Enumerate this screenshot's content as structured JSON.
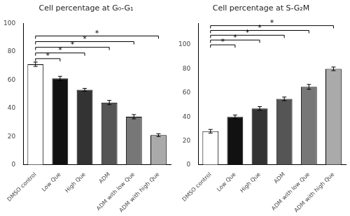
{
  "chart_data": [
    {
      "type": "bar",
      "title": "Cell percentage at G₀-G₁",
      "categories": [
        "DMSO control",
        "Low Que",
        "High Que",
        "ADM",
        "ADM with low Que",
        "ADM with high Que"
      ],
      "values": [
        71,
        61,
        53,
        44,
        34,
        21
      ],
      "errors": [
        1.5,
        1.5,
        1.0,
        1.5,
        1.5,
        1.0
      ],
      "colors": [
        "#ffffff",
        "#111111",
        "#333333",
        "#555555",
        "#777777",
        "#aaaaaa"
      ],
      "ylim": [
        0,
        100
      ],
      "yticks": [
        0,
        20,
        40,
        60,
        80,
        100
      ],
      "grid": false,
      "brackets": [
        {
          "between": [
            "DMSO control",
            "Low Que"
          ],
          "height": 75,
          "label": "*"
        },
        {
          "between": [
            "DMSO control",
            "High Que"
          ],
          "height": 79,
          "label": "*"
        },
        {
          "between": [
            "DMSO control",
            "ADM"
          ],
          "height": 83,
          "label": "*"
        },
        {
          "between": [
            "DMSO control",
            "ADM with low Que"
          ],
          "height": 87,
          "label": "*"
        },
        {
          "between": [
            "DMSO control",
            "ADM with high Que"
          ],
          "height": 91,
          "label": "*"
        }
      ]
    },
    {
      "type": "bar",
      "title": "Cell percentage at S-G₂M",
      "categories": [
        "DMSO control",
        "Low Que",
        "High Que",
        "ADM",
        "ADM with low Que",
        "ADM with high Que"
      ],
      "values": [
        28,
        40,
        47,
        55,
        65,
        80
      ],
      "errors": [
        1.5,
        1.5,
        1.5,
        1.5,
        2.0,
        1.5
      ],
      "colors": [
        "#ffffff",
        "#111111",
        "#333333",
        "#555555",
        "#777777",
        "#aaaaaa"
      ],
      "ylim": [
        0,
        118
      ],
      "yticks": [
        0,
        20,
        40,
        60,
        80,
        100
      ],
      "grid": false,
      "brackets": [
        {
          "between": [
            "DMSO control",
            "Low Que"
          ],
          "height": 100,
          "label": "*"
        },
        {
          "between": [
            "DMSO control",
            "High Que"
          ],
          "height": 104,
          "label": "*"
        },
        {
          "between": [
            "DMSO control",
            "ADM"
          ],
          "height": 108,
          "label": "*"
        },
        {
          "between": [
            "DMSO control",
            "ADM with low Que"
          ],
          "height": 112,
          "label": "*"
        },
        {
          "between": [
            "DMSO control",
            "ADM with high Que"
          ],
          "height": 116,
          "label": "*"
        }
      ]
    }
  ]
}
